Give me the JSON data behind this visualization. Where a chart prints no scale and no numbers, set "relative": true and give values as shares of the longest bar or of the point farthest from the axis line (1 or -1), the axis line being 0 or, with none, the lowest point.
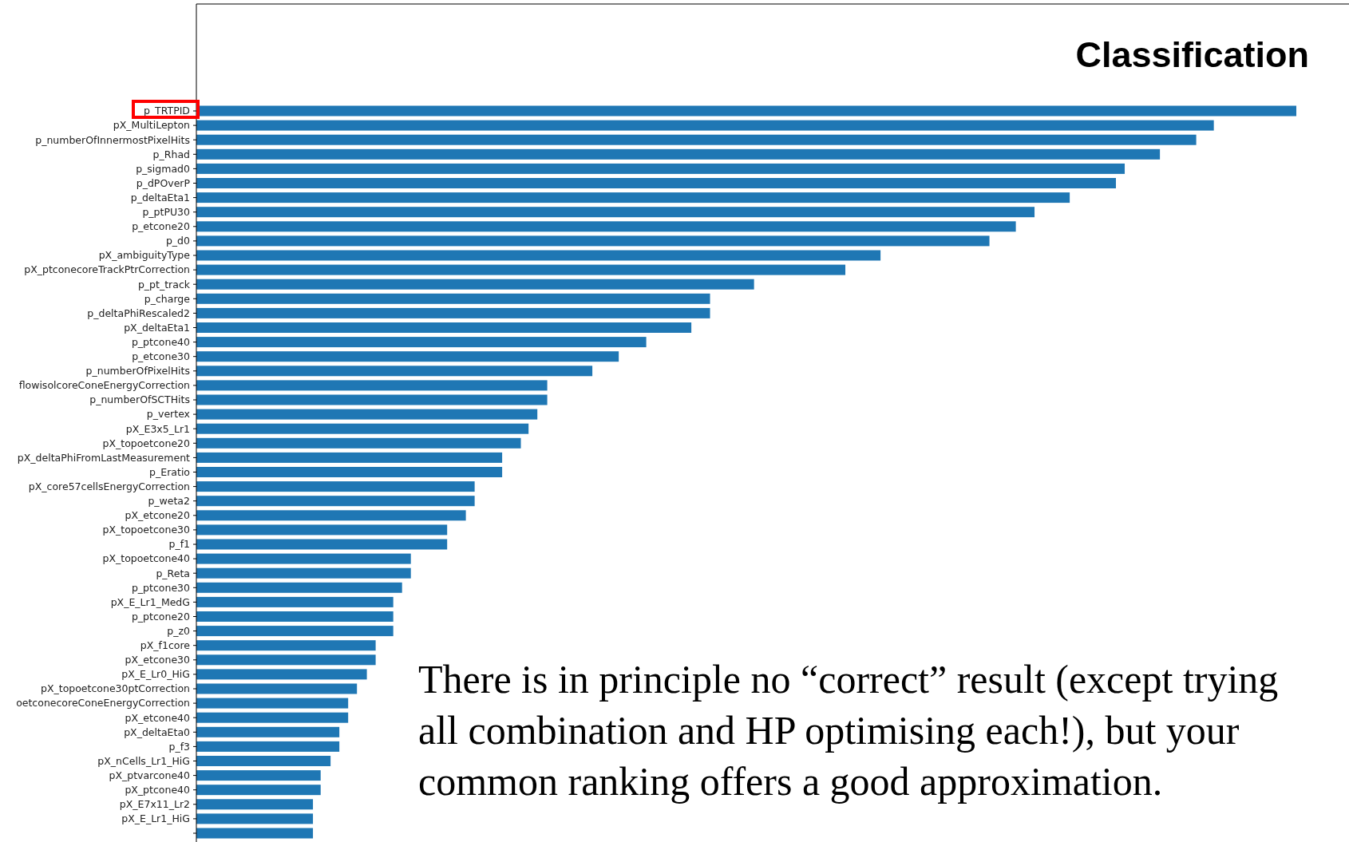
{
  "chart_data": {
    "type": "bar",
    "orientation": "horizontal",
    "relative": true,
    "title": "Classification",
    "categories": [
      "p_TRTPID",
      "pX_MultiLepton",
      "p_numberOfInnermostPixelHits",
      "p_Rhad",
      "p_sigmad0",
      "p_dPOverP",
      "p_deltaEta1",
      "p_ptPU30",
      "p_etcone20",
      "p_d0",
      "pX_ambiguityType",
      "pX_ptconecoreTrackPtrCorrection",
      "p_pt_track",
      "p_charge",
      "p_deltaPhiRescaled2",
      "pX_deltaEta1",
      "p_ptcone40",
      "p_etcone30",
      "p_numberOfPixelHits",
      "flowisolcoreConeEnergyCorrection",
      "p_numberOfSCTHits",
      "p_vertex",
      "pX_E3x5_Lr1",
      "pX_topoetcone20",
      "pX_deltaPhiFromLastMeasurement",
      "p_Eratio",
      "pX_core57cellsEnergyCorrection",
      "p_weta2",
      "pX_etcone20",
      "pX_topoetcone30",
      "p_f1",
      "pX_topoetcone40",
      "p_Reta",
      "p_ptcone30",
      "pX_E_Lr1_MedG",
      "p_ptcone20",
      "p_z0",
      "pX_f1core",
      "pX_etcone30",
      "pX_E_Lr0_HiG",
      "pX_topoetcone30ptCorrection",
      "oetconecoreConeEnergyCorrection",
      "pX_etcone40",
      "pX_deltaEta0",
      "p_f3",
      "pX_nCells_Lr1_HiG",
      "pX_ptvarcone40",
      "pX_ptcone40",
      "pX_E7x11_Lr2",
      "pX_E_Lr1_HiG",
      null
    ],
    "values": [
      1.0,
      0.925,
      0.909,
      0.876,
      0.844,
      0.836,
      0.794,
      0.762,
      0.745,
      0.721,
      0.622,
      0.59,
      0.507,
      0.467,
      0.467,
      0.45,
      0.409,
      0.384,
      0.36,
      0.319,
      0.319,
      0.31,
      0.302,
      0.295,
      0.278,
      0.278,
      0.253,
      0.253,
      0.245,
      0.228,
      0.228,
      0.195,
      0.195,
      0.187,
      0.179,
      0.179,
      0.179,
      0.163,
      0.163,
      0.155,
      0.146,
      0.138,
      0.138,
      0.13,
      0.13,
      0.122,
      0.113,
      0.113,
      0.106,
      0.106,
      0.106
    ],
    "color": "#1f77b4",
    "annotations": [
      "There is in principle no “correct” result (except trying all combination and HP optimising each!), but your common ranking offers a good approximation."
    ]
  }
}
